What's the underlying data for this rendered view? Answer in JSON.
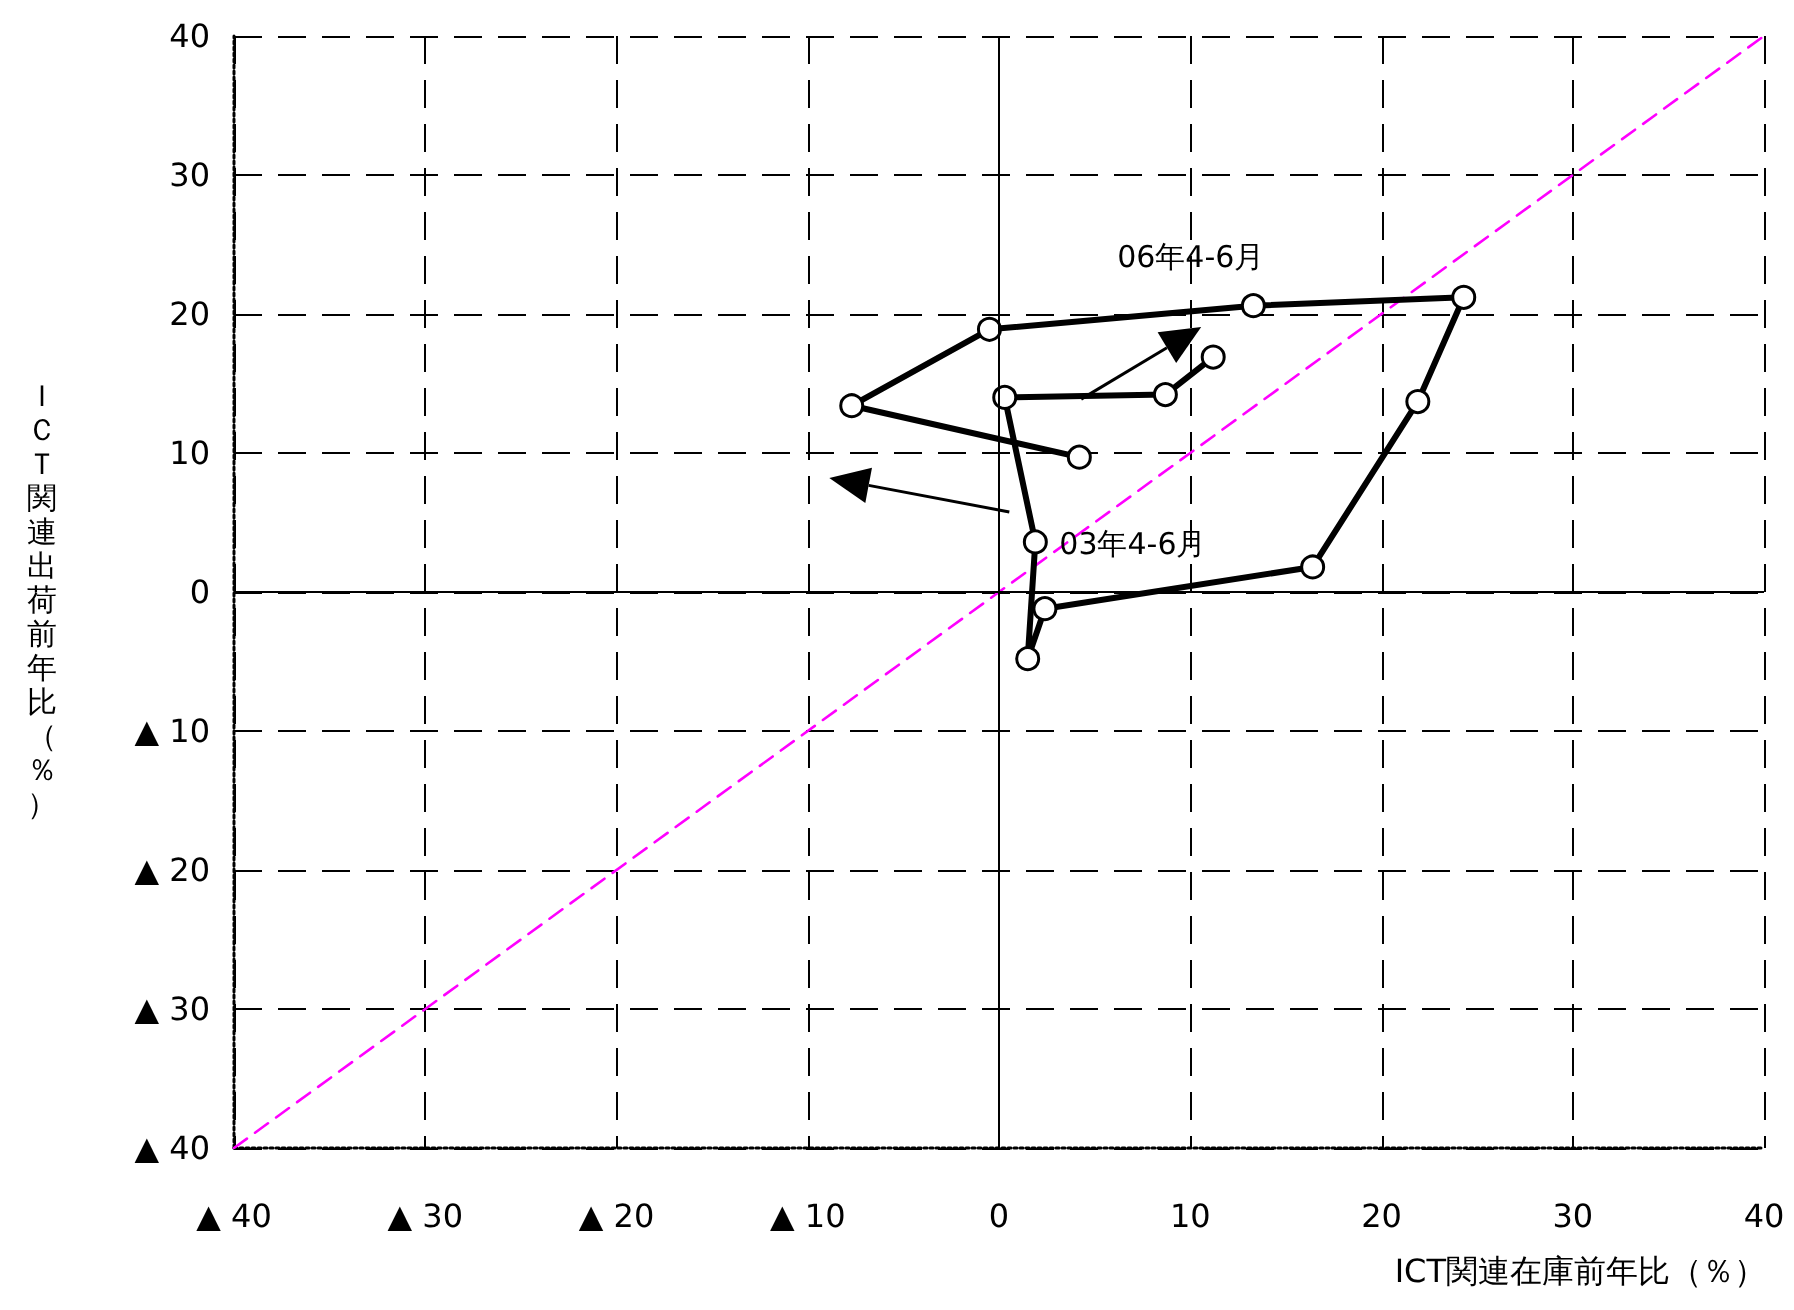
{
  "chart_data": {
    "type": "line",
    "xlabel": "ICT関連在庫前年比（％）",
    "ylabel": "ＩＣＴ関連出荷前年比（％）",
    "series": [
      {
        "color": "#000000",
        "marker": "circle",
        "line_style": "solid",
        "x": [
          4.2,
          -7.7,
          -0.5,
          13.3,
          24.3,
          21.9,
          16.4,
          2.4,
          1.5,
          1.9,
          0.3,
          8.7,
          11.2
        ],
        "values": [
          9.7,
          13.4,
          18.9,
          20.6,
          21.2,
          13.7,
          1.8,
          -1.2,
          -4.8,
          3.6,
          14.0,
          14.2,
          16.9
        ]
      },
      {
        "color": "#ff00ff",
        "marker": "none",
        "line_style": "dashed",
        "x": [
          -40,
          40
        ],
        "values": [
          -40,
          40
        ]
      }
    ],
    "annotations": [
      {
        "text": "06年4-6月",
        "x": 11.2,
        "y": 16.9
      },
      {
        "text": "03年4-6月",
        "x": 1.9,
        "y": 3.6
      }
    ],
    "xlim": [
      -40,
      40
    ],
    "xticks": [
      {
        "value": -40,
        "label": "▲ 40"
      },
      {
        "value": -30,
        "label": "▲ 30"
      },
      {
        "value": -20,
        "label": "▲ 20"
      },
      {
        "value": -10,
        "label": "▲ 10"
      },
      0,
      10,
      20,
      30,
      40
    ],
    "ylim": [
      -40,
      40
    ],
    "yticks": [
      {
        "value": -40,
        "label": "▲ 40"
      },
      {
        "value": -30,
        "label": "▲ 30"
      },
      {
        "value": -20,
        "label": "▲ 20"
      },
      {
        "value": -10,
        "label": "▲ 10"
      },
      0,
      10,
      20,
      30,
      40
    ],
    "grid": true
  }
}
